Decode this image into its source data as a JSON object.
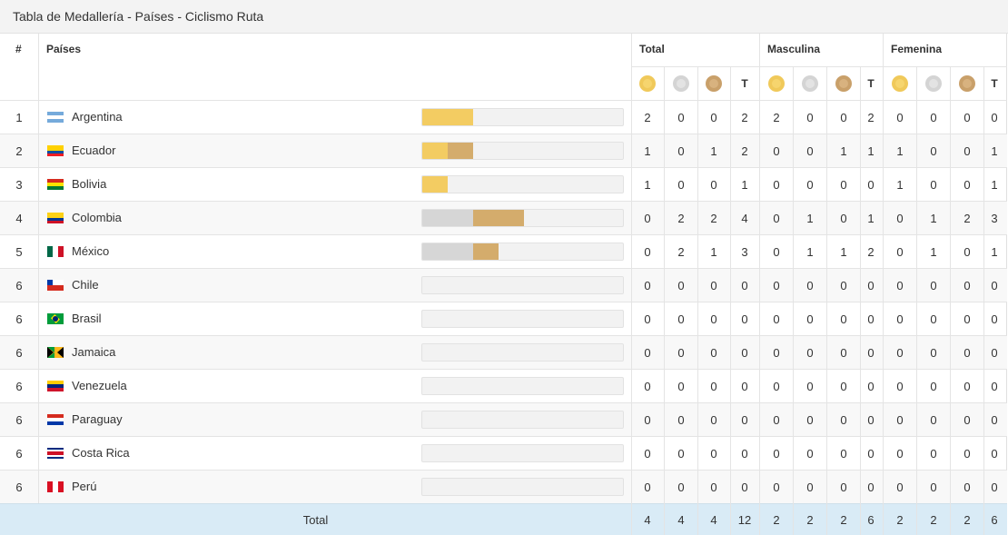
{
  "title": "Tabla de Medallería - Países - Ciclismo Ruta",
  "header": {
    "rank": "#",
    "country": "Países",
    "groups": [
      "Total",
      "Masculina",
      "Femenina"
    ],
    "total_label": "T"
  },
  "colors": {
    "gold": "#f3cc62",
    "silver": "#d6d6d6",
    "bronze": "#d4ac6c",
    "total_row": "#d9ebf6"
  },
  "rows": [
    {
      "rank": "1",
      "country": "Argentina",
      "flag": "argentina",
      "g": 2,
      "s": 0,
      "b": 0,
      "cells": [
        "2",
        "0",
        "0",
        "2",
        "2",
        "0",
        "0",
        "2",
        "0",
        "0",
        "0",
        "0"
      ]
    },
    {
      "rank": "2",
      "country": "Ecuador",
      "flag": "ecuador",
      "g": 1,
      "s": 0,
      "b": 1,
      "cells": [
        "1",
        "0",
        "1",
        "2",
        "0",
        "0",
        "1",
        "1",
        "1",
        "0",
        "0",
        "1"
      ]
    },
    {
      "rank": "3",
      "country": "Bolivia",
      "flag": "bolivia",
      "g": 1,
      "s": 0,
      "b": 0,
      "cells": [
        "1",
        "0",
        "0",
        "1",
        "0",
        "0",
        "0",
        "0",
        "1",
        "0",
        "0",
        "1"
      ]
    },
    {
      "rank": "4",
      "country": "Colombia",
      "flag": "colombia",
      "g": 0,
      "s": 2,
      "b": 2,
      "cells": [
        "0",
        "2",
        "2",
        "4",
        "0",
        "1",
        "0",
        "1",
        "0",
        "1",
        "2",
        "3"
      ]
    },
    {
      "rank": "5",
      "country": "México",
      "flag": "mexico",
      "g": 0,
      "s": 2,
      "b": 1,
      "cells": [
        "0",
        "2",
        "1",
        "3",
        "0",
        "1",
        "1",
        "2",
        "0",
        "1",
        "0",
        "1"
      ]
    },
    {
      "rank": "6",
      "country": "Chile",
      "flag": "chile",
      "g": 0,
      "s": 0,
      "b": 0,
      "cells": [
        "0",
        "0",
        "0",
        "0",
        "0",
        "0",
        "0",
        "0",
        "0",
        "0",
        "0",
        "0"
      ]
    },
    {
      "rank": "6",
      "country": "Brasil",
      "flag": "brasil",
      "g": 0,
      "s": 0,
      "b": 0,
      "cells": [
        "0",
        "0",
        "0",
        "0",
        "0",
        "0",
        "0",
        "0",
        "0",
        "0",
        "0",
        "0"
      ]
    },
    {
      "rank": "6",
      "country": "Jamaica",
      "flag": "jamaica",
      "g": 0,
      "s": 0,
      "b": 0,
      "cells": [
        "0",
        "0",
        "0",
        "0",
        "0",
        "0",
        "0",
        "0",
        "0",
        "0",
        "0",
        "0"
      ]
    },
    {
      "rank": "6",
      "country": "Venezuela",
      "flag": "venezuela",
      "g": 0,
      "s": 0,
      "b": 0,
      "cells": [
        "0",
        "0",
        "0",
        "0",
        "0",
        "0",
        "0",
        "0",
        "0",
        "0",
        "0",
        "0"
      ]
    },
    {
      "rank": "6",
      "country": "Paraguay",
      "flag": "paraguay",
      "g": 0,
      "s": 0,
      "b": 0,
      "cells": [
        "0",
        "0",
        "0",
        "0",
        "0",
        "0",
        "0",
        "0",
        "0",
        "0",
        "0",
        "0"
      ]
    },
    {
      "rank": "6",
      "country": "Costa Rica",
      "flag": "costa-rica",
      "g": 0,
      "s": 0,
      "b": 0,
      "cells": [
        "0",
        "0",
        "0",
        "0",
        "0",
        "0",
        "0",
        "0",
        "0",
        "0",
        "0",
        "0"
      ]
    },
    {
      "rank": "6",
      "country": "Perú",
      "flag": "peru",
      "g": 0,
      "s": 0,
      "b": 0,
      "cells": [
        "0",
        "0",
        "0",
        "0",
        "0",
        "0",
        "0",
        "0",
        "0",
        "0",
        "0",
        "0"
      ]
    }
  ],
  "total": {
    "label": "Total",
    "cells": [
      "4",
      "4",
      "4",
      "12",
      "2",
      "2",
      "2",
      "6",
      "2",
      "2",
      "2",
      "6"
    ]
  },
  "bar_max": 4
}
